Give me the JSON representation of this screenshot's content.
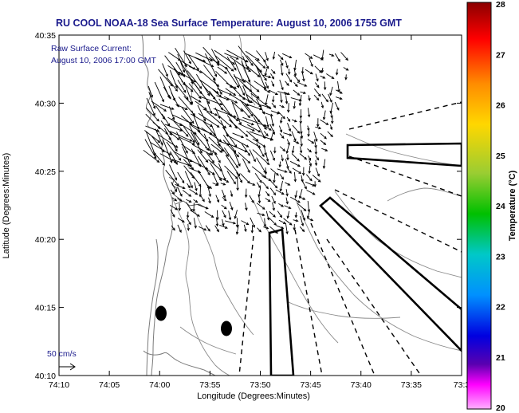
{
  "title": "RU COOL  NOAA-18  Sea Surface Temperature:  August 10, 2006 1755 GMT",
  "current_label_line1": "Raw Surface Current:",
  "current_label_line2": "August 10, 2006 17:00 GMT",
  "scale_label": "50 cm/s",
  "x_axis_label": "Longitude (Degrees:Minutes)",
  "y_axis_label": "Latitude (Degrees:Minutes)",
  "x_ticks": [
    "74:10",
    "74:05",
    "74:00",
    "73:55",
    "73:50",
    "73:45",
    "73:40",
    "73:35",
    "73:3"
  ],
  "y_ticks": [
    "40:35",
    "40:30",
    "40:25",
    "40:20",
    "40:15",
    "40:10"
  ],
  "colorbar_label": "Temperature (°C)",
  "colorbar_ticks": [
    "28",
    "27",
    "26",
    "25",
    "24",
    "23",
    "22",
    "21",
    "20"
  ],
  "map_data": {
    "lon_range": [
      "74:10",
      "73:30"
    ],
    "lat_range": [
      "40:10",
      "40:35"
    ],
    "colorbar_range_c": [
      20,
      28
    ],
    "colorbar_colors": [
      "#8b0000",
      "#ff0000",
      "#ff8c00",
      "#ffd700",
      "#9acd32",
      "#00c000",
      "#00c8c8",
      "#0090ff",
      "#0000e0",
      "#5a00b0",
      "#ff00ff",
      "#ffb0ff"
    ],
    "sst_coverage": "no valid SST pixels (cloud-covered, white)"
  }
}
